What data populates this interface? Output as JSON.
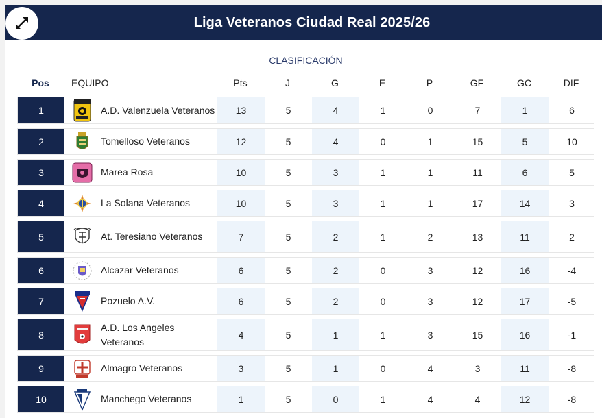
{
  "header": {
    "title": "Liga Veteranos Ciudad Real 2025/26",
    "expand_icon": "expand-arrows-icon"
  },
  "table": {
    "subtitle": "CLASIFICACIÓN",
    "columns": [
      "Pos",
      "EQUIPO",
      "Pts",
      "J",
      "G",
      "E",
      "P",
      "GF",
      "GC",
      "DIF"
    ],
    "rows": [
      {
        "pos": "1",
        "team": "A.D. Valenzuela Veteranos",
        "logo": "valenzuela-crest-icon",
        "pts": "13",
        "j": "5",
        "g": "4",
        "e": "1",
        "p": "0",
        "gf": "7",
        "gc": "1",
        "dif": "6"
      },
      {
        "pos": "2",
        "team": "Tomelloso Veteranos",
        "logo": "tomelloso-crest-icon",
        "pts": "12",
        "j": "5",
        "g": "4",
        "e": "0",
        "p": "1",
        "gf": "15",
        "gc": "5",
        "dif": "10"
      },
      {
        "pos": "3",
        "team": "Marea Rosa",
        "logo": "marea-rosa-crest-icon",
        "pts": "10",
        "j": "5",
        "g": "3",
        "e": "1",
        "p": "1",
        "gf": "11",
        "gc": "6",
        "dif": "5"
      },
      {
        "pos": "4",
        "team": "La Solana Veteranos",
        "logo": "la-solana-crest-icon",
        "pts": "10",
        "j": "5",
        "g": "3",
        "e": "1",
        "p": "1",
        "gf": "17",
        "gc": "14",
        "dif": "3"
      },
      {
        "pos": "5",
        "team": "At. Teresiano Veteranos",
        "logo": "teresiano-crest-icon",
        "pts": "7",
        "j": "5",
        "g": "2",
        "e": "1",
        "p": "2",
        "gf": "13",
        "gc": "11",
        "dif": "2"
      },
      {
        "pos": "6",
        "team": "Alcazar Veteranos",
        "logo": "alcazar-crest-icon",
        "pts": "6",
        "j": "5",
        "g": "2",
        "e": "0",
        "p": "3",
        "gf": "12",
        "gc": "16",
        "dif": "-4"
      },
      {
        "pos": "7",
        "team": "Pozuelo A.V.",
        "logo": "pozuelo-crest-icon",
        "pts": "6",
        "j": "5",
        "g": "2",
        "e": "0",
        "p": "3",
        "gf": "12",
        "gc": "17",
        "dif": "-5"
      },
      {
        "pos": "8",
        "team": "A.D. Los Angeles Veteranos",
        "logo": "los-angeles-crest-icon",
        "pts": "4",
        "j": "5",
        "g": "1",
        "e": "1",
        "p": "3",
        "gf": "15",
        "gc": "16",
        "dif": "-1"
      },
      {
        "pos": "9",
        "team": "Almagro Veteranos",
        "logo": "almagro-crest-icon",
        "pts": "3",
        "j": "5",
        "g": "1",
        "e": "0",
        "p": "4",
        "gf": "3",
        "gc": "11",
        "dif": "-8"
      },
      {
        "pos": "10",
        "team": "Manchego Veteranos",
        "logo": "manchego-crest-icon",
        "pts": "1",
        "j": "5",
        "g": "0",
        "e": "1",
        "p": "4",
        "gf": "4",
        "gc": "12",
        "dif": "-8"
      }
    ]
  },
  "colors": {
    "header_bg": "#15264d",
    "pos_bg": "#15264d",
    "shade": "#edf4fb"
  }
}
